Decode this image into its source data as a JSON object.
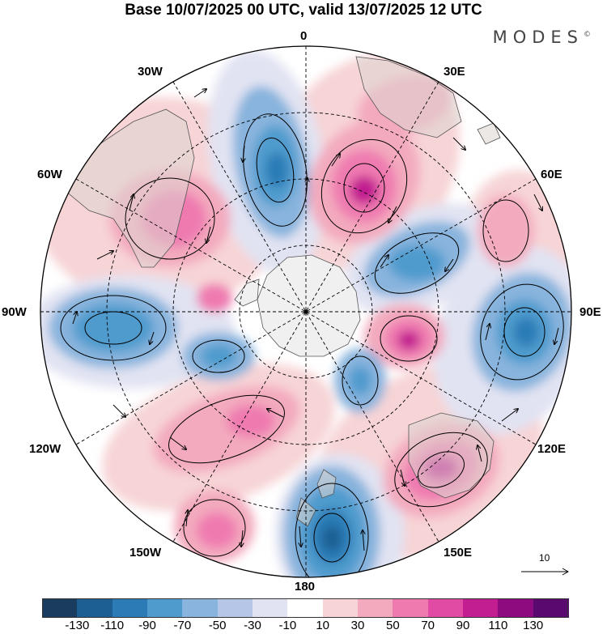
{
  "title": "Base 10/07/2025 00 UTC, valid 13/07/2025 12 UTC",
  "brand": "MODES",
  "brand_mark": "©",
  "longitude_labels": {
    "lon_0": "0",
    "lon_30e": "30E",
    "lon_60e": "60E",
    "lon_90e": "90E",
    "lon_120e": "120E",
    "lon_150e": "150E",
    "lon_180": "180",
    "lon_150w": "150W",
    "lon_120w": "120W",
    "lon_90w": "90W",
    "lon_60w": "60W",
    "lon_30w": "30W"
  },
  "vector_legend": {
    "value": "10"
  },
  "colorbar": {
    "colors": [
      "#1a3c5e",
      "#1d5e93",
      "#2c7bb6",
      "#4f9bce",
      "#88b4dd",
      "#b6c6e6",
      "#e1e3f2",
      "#ffffff",
      "#f7d4d6",
      "#f3aabe",
      "#ef7ab0",
      "#e14ba4",
      "#c21d91",
      "#8d0a7f",
      "#5a0a6f"
    ],
    "ticks": [
      "-130",
      "-110",
      "-90",
      "-70",
      "-50",
      "-30",
      "-10",
      "10",
      "30",
      "50",
      "70",
      "90",
      "110",
      "130"
    ]
  },
  "map_colors": {
    "land": "#dcd6d0",
    "antarctica": "#f0f0f0",
    "coast": "#555555"
  }
}
